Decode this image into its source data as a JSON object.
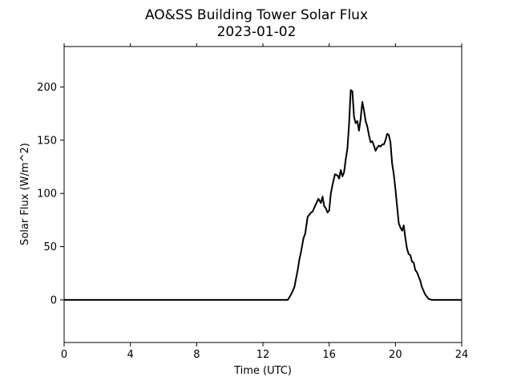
{
  "chart_data": {
    "type": "line",
    "title": "AO&SS Building Tower Solar Flux",
    "subtitle": "2023-01-02",
    "xlabel": "Time (UTC)",
    "ylabel": "Solar Flux (W/m^2)",
    "xlim": [
      0,
      24
    ],
    "ylim": [
      -40,
      238
    ],
    "xticks": [
      0,
      4,
      8,
      12,
      16,
      20,
      24
    ],
    "yticks": [
      0,
      50,
      100,
      150,
      200
    ],
    "grid": false,
    "line_color": "#000000",
    "series": [
      {
        "x": [
          0,
          13.5,
          13.7,
          13.9,
          14.0,
          14.1,
          14.2,
          14.3,
          14.45,
          14.55,
          14.7,
          14.8,
          14.9,
          15.0,
          15.2,
          15.35,
          15.5,
          15.6,
          15.7,
          15.8,
          15.9,
          16.0,
          16.1,
          16.2,
          16.35,
          16.5,
          16.6,
          16.7,
          16.8,
          16.9,
          17.0,
          17.1,
          17.2,
          17.3,
          17.4,
          17.5,
          17.6,
          17.7,
          17.8,
          17.9,
          18.0,
          18.1,
          18.2,
          18.3,
          18.4,
          18.5,
          18.6,
          18.7,
          18.8,
          18.9,
          19.0,
          19.1,
          19.2,
          19.3,
          19.4,
          19.5,
          19.6,
          19.7,
          19.8,
          19.9,
          20.0,
          20.1,
          20.2,
          20.3,
          20.4,
          20.5,
          20.6,
          20.7,
          20.8,
          20.9,
          21.0,
          21.1,
          21.2,
          21.3,
          21.4,
          21.5,
          21.6,
          21.8,
          22.0,
          22.2,
          22.4,
          22.5,
          22.6,
          24
        ],
        "y": [
          0,
          0,
          5,
          12,
          20,
          28,
          38,
          45,
          58,
          62,
          78,
          80,
          82,
          83,
          90,
          95,
          91,
          97,
          88,
          86,
          82,
          84,
          100,
          108,
          118,
          117,
          114,
          122,
          116,
          120,
          132,
          142,
          165,
          197,
          196,
          172,
          166,
          168,
          159,
          170,
          186,
          178,
          168,
          163,
          155,
          148,
          149,
          145,
          140,
          143,
          145,
          144,
          146,
          146,
          150,
          156,
          155,
          148,
          128,
          118,
          104,
          88,
          72,
          68,
          65,
          70,
          58,
          48,
          43,
          42,
          36,
          35,
          28,
          26,
          22,
          18,
          12,
          5,
          1,
          0,
          0,
          0,
          0,
          0
        ]
      }
    ]
  }
}
